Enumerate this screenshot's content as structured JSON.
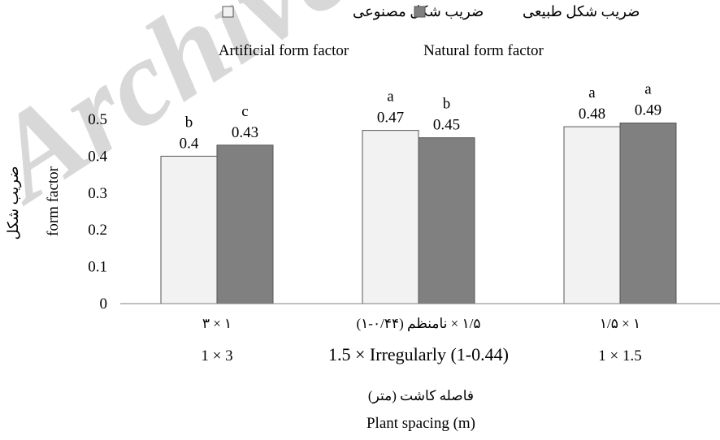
{
  "watermark": "Archive",
  "legend": {
    "artificial_fa": "ضریب شکل مصنوعی",
    "natural_fa": "ضریب شکل طبیعی",
    "artificial_en": "Artificial form factor",
    "natural_en": "Natural form factor"
  },
  "y_axis": {
    "label_fa": "ضریب شکل",
    "label_en": "form factor",
    "ticks": [
      "0",
      "0.1",
      "0.2",
      "0.3",
      "0.4",
      "0.5"
    ]
  },
  "x_axis": {
    "label_fa": "فاصله کاشت (متر)",
    "label_en": "Plant spacing (m)"
  },
  "colors": {
    "artificial": "#f2f2f2",
    "natural": "#808080",
    "axis": "#808080",
    "watermark": "#d8d8d8"
  },
  "chart_data": {
    "type": "bar",
    "categories": [
      "1 × 3",
      "1.5 × Irregularly (1-0.44)",
      "1 × 1.5"
    ],
    "categories_fa": [
      "۱ × ۳",
      "۱/۵ × نامنظم (۰/۴۴-۱)",
      "۱ × ۱/۵"
    ],
    "series": [
      {
        "name": "Artificial form factor",
        "values": [
          0.4,
          0.47,
          0.48
        ],
        "letters": [
          "b",
          "a",
          "a"
        ],
        "value_labels": [
          "0.4",
          "0.47",
          "0.48"
        ]
      },
      {
        "name": "Natural form factor",
        "values": [
          0.43,
          0.45,
          0.49
        ],
        "letters": [
          "c",
          "b",
          "a"
        ],
        "value_labels": [
          "0.43",
          "0.45",
          "0.49"
        ]
      }
    ],
    "ylim": [
      0,
      0.5
    ],
    "grid": false,
    "legend_position": "top"
  }
}
